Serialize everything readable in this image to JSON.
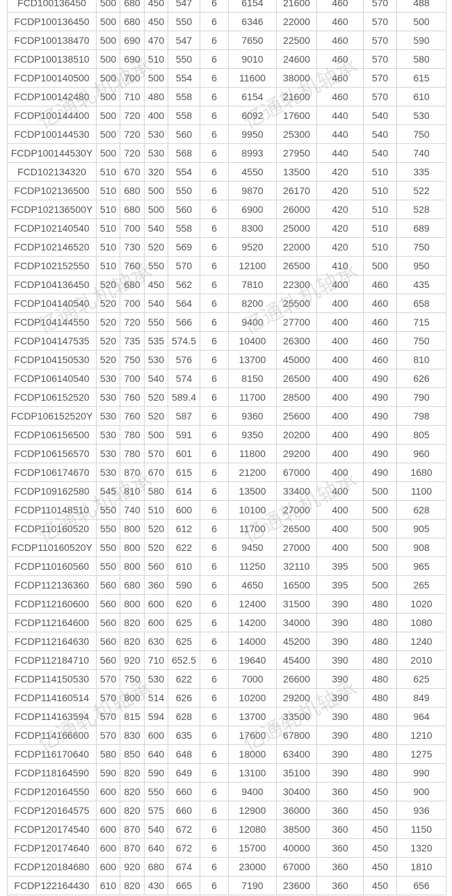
{
  "watermark": "亿通轧机轴承",
  "rows": [
    [
      "FCD100136450",
      "500",
      "680",
      "450",
      "547",
      "6",
      "6154",
      "21600",
      "460",
      "570",
      "488"
    ],
    [
      "FCDP100136450",
      "500",
      "680",
      "450",
      "550",
      "6",
      "6346",
      "22000",
      "460",
      "570",
      "500"
    ],
    [
      "FCDP100138470",
      "500",
      "690",
      "470",
      "547",
      "6",
      "7650",
      "22500",
      "460",
      "570",
      "590"
    ],
    [
      "FCDP100138510",
      "500",
      "690",
      "510",
      "550",
      "6",
      "9010",
      "24600",
      "460",
      "570",
      "580"
    ],
    [
      "FCDP100140500",
      "500",
      "700",
      "500",
      "554",
      "6",
      "11600",
      "38000",
      "460",
      "570",
      "615"
    ],
    [
      "FCDP100142480",
      "500",
      "710",
      "480",
      "558",
      "6",
      "6154",
      "21600",
      "460",
      "570",
      "610"
    ],
    [
      "FCDP100144400",
      "500",
      "720",
      "400",
      "558",
      "6",
      "6092",
      "17600",
      "440",
      "540",
      "530"
    ],
    [
      "FCDP100144530",
      "500",
      "720",
      "530",
      "560",
      "6",
      "9950",
      "25300",
      "440",
      "540",
      "750"
    ],
    [
      "FCDP100144530Y",
      "500",
      "720",
      "530",
      "568",
      "6",
      "8993",
      "27950",
      "440",
      "540",
      "740"
    ],
    [
      "FCD102134320",
      "510",
      "670",
      "320",
      "554",
      "6",
      "4550",
      "13500",
      "420",
      "510",
      "335"
    ],
    [
      "FCDP102136500",
      "510",
      "680",
      "500",
      "550",
      "6",
      "9870",
      "26170",
      "420",
      "510",
      "522"
    ],
    [
      "FCDP102136500Y",
      "510",
      "680",
      "500",
      "560",
      "6",
      "6900",
      "26000",
      "420",
      "510",
      "528"
    ],
    [
      "FCDP102140540",
      "510",
      "700",
      "540",
      "558",
      "6",
      "8300",
      "25000",
      "420",
      "510",
      "689"
    ],
    [
      "FCDP102146520",
      "510",
      "730",
      "520",
      "569",
      "6",
      "9520",
      "22000",
      "420",
      "510",
      "750"
    ],
    [
      "FCDP102152550",
      "510",
      "760",
      "550",
      "570",
      "6",
      "12100",
      "26500",
      "410",
      "500",
      "950"
    ],
    [
      "FCDP104136450",
      "520",
      "680",
      "450",
      "562",
      "6",
      "7810",
      "22300",
      "400",
      "460",
      "435"
    ],
    [
      "FCDP104140540",
      "520",
      "700",
      "540",
      "564",
      "6",
      "8200",
      "25500",
      "400",
      "460",
      "658"
    ],
    [
      "FCDP104144550",
      "520",
      "720",
      "550",
      "566",
      "6",
      "9400",
      "27700",
      "400",
      "460",
      "715"
    ],
    [
      "FCDP104147535",
      "520",
      "735",
      "535",
      "574.5",
      "6",
      "10400",
      "26300",
      "400",
      "460",
      "750"
    ],
    [
      "FCDP104150530",
      "520",
      "750",
      "530",
      "576",
      "6",
      "13700",
      "45000",
      "400",
      "460",
      "810"
    ],
    [
      "FCDP106140540",
      "530",
      "700",
      "540",
      "574",
      "6",
      "8150",
      "26500",
      "400",
      "490",
      "626"
    ],
    [
      "FCDP106152520",
      "530",
      "760",
      "520",
      "589.4",
      "6",
      "11700",
      "28500",
      "400",
      "490",
      "790"
    ],
    [
      "FCDP106152520Y",
      "530",
      "760",
      "520",
      "587",
      "6",
      "9360",
      "25600",
      "400",
      "490",
      "798"
    ],
    [
      "FCDP106156500",
      "530",
      "780",
      "500",
      "591",
      "6",
      "9350",
      "20200",
      "400",
      "490",
      "805"
    ],
    [
      "FCDP106156570",
      "530",
      "780",
      "570",
      "601",
      "6",
      "11800",
      "29200",
      "400",
      "490",
      "960"
    ],
    [
      "FCDP106174670",
      "530",
      "870",
      "670",
      "615",
      "6",
      "21200",
      "67000",
      "400",
      "490",
      "1680"
    ],
    [
      "FCDP109162580",
      "545",
      "810",
      "580",
      "614",
      "6",
      "13500",
      "33400",
      "400",
      "500",
      "1100"
    ],
    [
      "FCDP110148510",
      "550",
      "740",
      "510",
      "600",
      "6",
      "10100",
      "27000",
      "400",
      "500",
      "628"
    ],
    [
      "FCDP110160520",
      "550",
      "800",
      "520",
      "612",
      "6",
      "11700",
      "26500",
      "400",
      "500",
      "905"
    ],
    [
      "FCDP110160520Y",
      "550",
      "800",
      "520",
      "622",
      "6",
      "9450",
      "27000",
      "400",
      "500",
      "908"
    ],
    [
      "FCDP110160560",
      "550",
      "800",
      "560",
      "610",
      "6",
      "11250",
      "32110",
      "395",
      "500",
      "965"
    ],
    [
      "FCDP112136360",
      "560",
      "680",
      "360",
      "590",
      "6",
      "4650",
      "16500",
      "395",
      "500",
      "265"
    ],
    [
      "FCDP112160600",
      "560",
      "800",
      "600",
      "620",
      "6",
      "12400",
      "31500",
      "390",
      "480",
      "1020"
    ],
    [
      "FCDP112164600",
      "560",
      "820",
      "600",
      "625",
      "6",
      "14200",
      "34000",
      "390",
      "480",
      "1080"
    ],
    [
      "FCDP112164630",
      "560",
      "820",
      "630",
      "625",
      "6",
      "14000",
      "45200",
      "390",
      "480",
      "1240"
    ],
    [
      "FCDP112184710",
      "560",
      "920",
      "710",
      "652.5",
      "6",
      "19640",
      "45400",
      "390",
      "480",
      "2010"
    ],
    [
      "FCDP114150530",
      "570",
      "750",
      "530",
      "622",
      "6",
      "7000",
      "26600",
      "390",
      "480",
      "625"
    ],
    [
      "FCDP114160514",
      "570",
      "800",
      "514",
      "626",
      "6",
      "10200",
      "29200",
      "390",
      "480",
      "849"
    ],
    [
      "FCDP114163594",
      "570",
      "815",
      "594",
      "628",
      "6",
      "13700",
      "33500",
      "390",
      "480",
      "964"
    ],
    [
      "FCDP114166600",
      "570",
      "830",
      "600",
      "635",
      "6",
      "17600",
      "67800",
      "390",
      "480",
      "1210"
    ],
    [
      "FCDP116170640",
      "580",
      "850",
      "640",
      "648",
      "6",
      "18000",
      "63400",
      "390",
      "480",
      "1275"
    ],
    [
      "FCDP118164590",
      "590",
      "820",
      "590",
      "649",
      "6",
      "13100",
      "35100",
      "390",
      "480",
      "990"
    ],
    [
      "FCDP120164550",
      "600",
      "820",
      "550",
      "660",
      "6",
      "9400",
      "30400",
      "360",
      "450",
      "900"
    ],
    [
      "FCDP120164575",
      "600",
      "820",
      "575",
      "660",
      "6",
      "12900",
      "36000",
      "360",
      "450",
      "936"
    ],
    [
      "FCDP120174540",
      "600",
      "870",
      "540",
      "672",
      "6",
      "12080",
      "38500",
      "360",
      "450",
      "1150"
    ],
    [
      "FCDP120174640",
      "600",
      "870",
      "640",
      "672",
      "6",
      "15700",
      "40000",
      "360",
      "450",
      "1320"
    ],
    [
      "FCDP120184680",
      "600",
      "920",
      "680",
      "674",
      "6",
      "23000",
      "67000",
      "360",
      "450",
      "1810"
    ],
    [
      "FCDP122164430",
      "610",
      "820",
      "430",
      "665",
      "6",
      "7190",
      "23600",
      "360",
      "450",
      "656"
    ]
  ]
}
